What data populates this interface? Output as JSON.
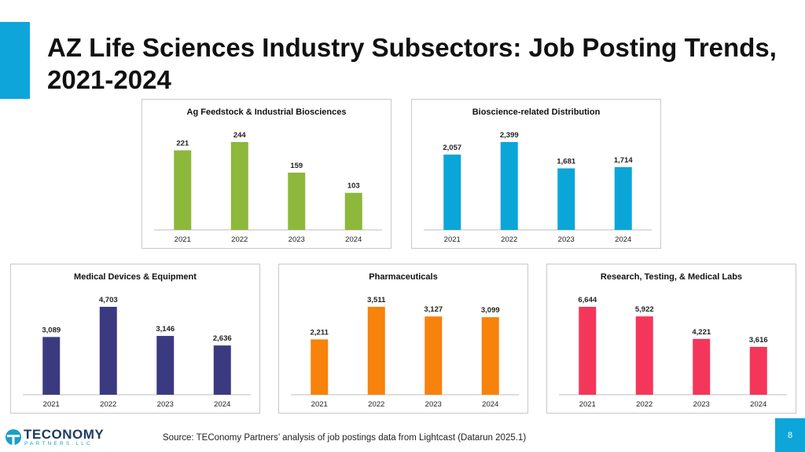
{
  "slide": {
    "title": "AZ Life Sciences Industry Subsectors: Job Posting Trends, 2021-2024",
    "source": "Source: TEConomy Partners’ analysis of job postings data from Lightcast (Datarun 2025.1)",
    "page_number": "8",
    "logo_main": "TECONOMY",
    "logo_sub": "PARTNERS LLC",
    "accent_color": "#0ea5db"
  },
  "chart_data": [
    {
      "type": "bar",
      "title": "Ag Feedstock & Industrial Biosciences",
      "categories": [
        "2021",
        "2022",
        "2023",
        "2024"
      ],
      "values": [
        221,
        244,
        159,
        103
      ],
      "labels": [
        "221",
        "244",
        "159",
        "103"
      ],
      "color": "#8db83b"
    },
    {
      "type": "bar",
      "title": "Bioscience-related Distribution",
      "categories": [
        "2021",
        "2022",
        "2023",
        "2024"
      ],
      "values": [
        2057,
        2399,
        1681,
        1714
      ],
      "labels": [
        "2,057",
        "2,399",
        "1,681",
        "1,714"
      ],
      "color": "#0ba6d8"
    },
    {
      "type": "bar",
      "title": "Medical Devices & Equipment",
      "categories": [
        "2021",
        "2022",
        "2023",
        "2024"
      ],
      "values": [
        3089,
        4703,
        3146,
        2636
      ],
      "labels": [
        "3,089",
        "4,703",
        "3,146",
        "2,636"
      ],
      "color": "#3b3a80"
    },
    {
      "type": "bar",
      "title": "Pharmaceuticals",
      "categories": [
        "2021",
        "2022",
        "2023",
        "2024"
      ],
      "values": [
        2211,
        3511,
        3127,
        3099
      ],
      "labels": [
        "2,211",
        "3,511",
        "3,127",
        "3,099"
      ],
      "color": "#f7820c"
    },
    {
      "type": "bar",
      "title": "Research, Testing, & Medical Labs",
      "categories": [
        "2021",
        "2022",
        "2023",
        "2024"
      ],
      "values": [
        6644,
        5922,
        4221,
        3616
      ],
      "labels": [
        "6,644",
        "5,922",
        "4,221",
        "3,616"
      ],
      "color": "#f4365a"
    }
  ]
}
